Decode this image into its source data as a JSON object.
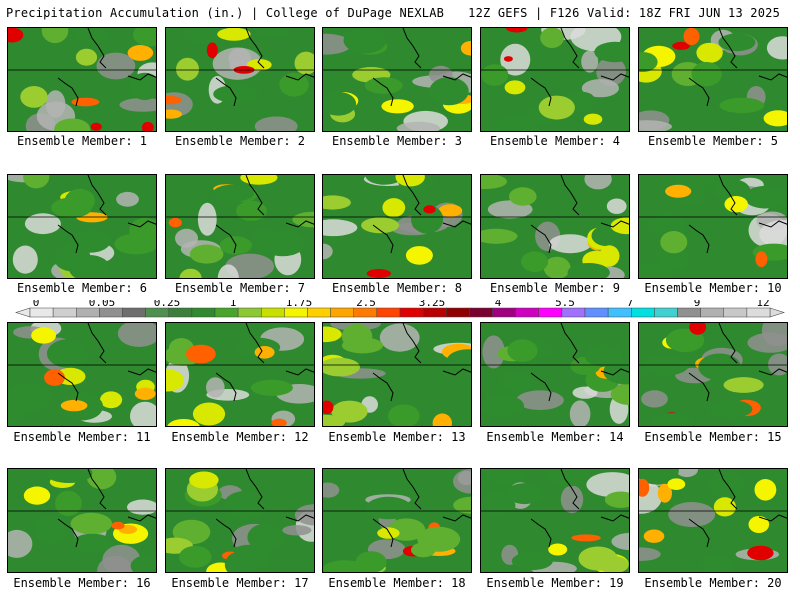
{
  "header": {
    "title": "Precipitation Accumulation (in.) | College of DuPage NEXLAB",
    "run_info": "12Z GEFS | F126 Valid: 18Z FRI JUN 13 2025"
  },
  "members": [
    {
      "label": "Ensemble Member: 1"
    },
    {
      "label": "Ensemble Member: 2"
    },
    {
      "label": "Ensemble Member: 3"
    },
    {
      "label": "Ensemble Member: 4"
    },
    {
      "label": "Ensemble Member: 5"
    },
    {
      "label": "Ensemble Member: 6"
    },
    {
      "label": "Ensemble Member: 7"
    },
    {
      "label": "Ensemble Member: 8"
    },
    {
      "label": "Ensemble Member: 9"
    },
    {
      "label": "Ensemble Member: 10"
    },
    {
      "label": "Ensemble Member: 11"
    },
    {
      "label": "Ensemble Member: 12"
    },
    {
      "label": "Ensemble Member: 13"
    },
    {
      "label": "Ensemble Member: 14"
    },
    {
      "label": "Ensemble Member: 15"
    },
    {
      "label": "Ensemble Member: 16"
    },
    {
      "label": "Ensemble Member: 17"
    },
    {
      "label": "Ensemble Member: 18"
    },
    {
      "label": "Ensemble Member: 19"
    },
    {
      "label": "Ensemble Member: 20"
    }
  ],
  "legend": {
    "tick_labels": [
      "0",
      "0.05",
      "0.25",
      "1",
      "1.75",
      "2.5",
      "3.25",
      "4",
      "5.5",
      "7",
      "9",
      "12"
    ],
    "colors": [
      "#e8e8e8",
      "#cfcfcf",
      "#b0b0b0",
      "#909090",
      "#6e6e6e",
      "#4f8f4f",
      "#3a7f3a",
      "#2f8a2f",
      "#47a52a",
      "#8bc834",
      "#c8e000",
      "#f5f500",
      "#ffd000",
      "#ffa500",
      "#ff7a00",
      "#ff4500",
      "#e00000",
      "#b80000",
      "#900000",
      "#7a0030",
      "#a00080",
      "#d000c0",
      "#ff00ff",
      "#a070ff",
      "#6090ff",
      "#40c0ff",
      "#00e0e0",
      "#40d0d0",
      "#909090",
      "#b0b0b0",
      "#c8c8c8",
      "#dcdcdc"
    ]
  }
}
